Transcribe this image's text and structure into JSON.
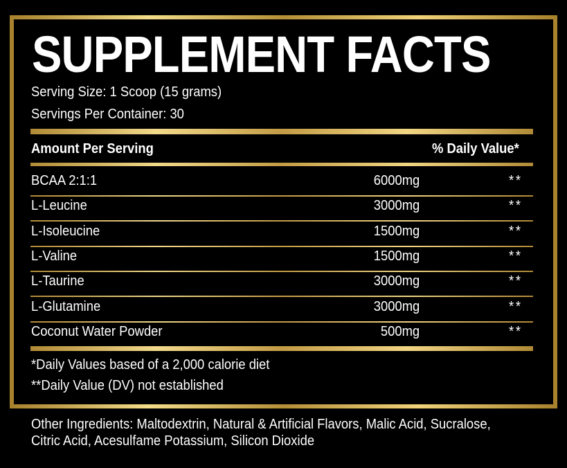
{
  "title": "SUPPLEMENT FACTS",
  "serving_size": "Serving Size: 1 Scoop (15 grams)",
  "servings_per_container": "Servings Per Container: 30",
  "header": {
    "left": "Amount Per Serving",
    "right": "% Daily Value*"
  },
  "rows": [
    {
      "name": "BCAA 2:1:1",
      "amount": "6000mg",
      "dv": "**"
    },
    {
      "name": "L-Leucine",
      "amount": "3000mg",
      "dv": "**"
    },
    {
      "name": "L-Isoleucine",
      "amount": "1500mg",
      "dv": "**"
    },
    {
      "name": "L-Valine",
      "amount": "1500mg",
      "dv": "**"
    },
    {
      "name": "L-Taurine",
      "amount": "3000mg",
      "dv": "**"
    },
    {
      "name": "L-Glutamine",
      "amount": "3000mg",
      "dv": "**"
    },
    {
      "name": "Coconut Water Powder",
      "amount": "500mg",
      "dv": "**"
    }
  ],
  "footnotes": [
    "*Daily Values based of a 2,000 calorie diet",
    "**Daily Value (DV) not established"
  ],
  "other_ingredients": [
    "Other Ingredients: Maltodextrin, Natural & Artificial Flavors, Malic Acid, Sucralose,",
    "Citric Acid, Acesulfame Potassium, Silicon Dioxide"
  ]
}
